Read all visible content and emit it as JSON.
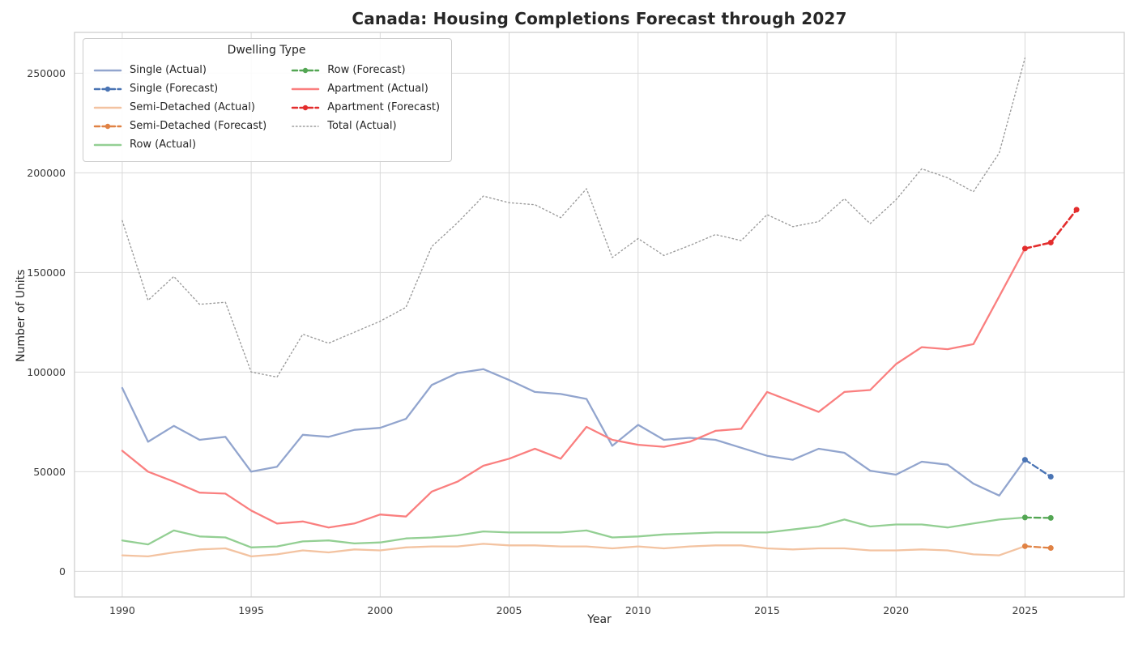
{
  "chart_data": {
    "type": "line",
    "title": "Canada: Housing Completions Forecast through 2027",
    "xlabel": "Year",
    "ylabel": "Number of Units",
    "legend_title": "Dwelling Type",
    "legend_position": "upper left",
    "grid": true,
    "colors": {
      "single_actual": "#92a5ce",
      "single_forecast": "#4a74b4",
      "semi_actual": "#f3c3a1",
      "semi_forecast": "#e08244",
      "row_actual": "#93cf93",
      "row_forecast": "#53a653",
      "apartment_actual": "#fa7f7f",
      "apartment_forecast": "#e32d2d",
      "total": "#9c9c9c"
    },
    "xticks": [
      1990,
      1995,
      2000,
      2005,
      2010,
      2015,
      2020,
      2025
    ],
    "yticks": [
      0,
      50000,
      100000,
      150000,
      200000,
      250000
    ],
    "xlim": [
      1988.15,
      2028.85
    ],
    "ylim": [
      -12880,
      270480
    ],
    "years": [
      1990,
      1991,
      1992,
      1993,
      1994,
      1995,
      1996,
      1997,
      1998,
      1999,
      2000,
      2001,
      2002,
      2003,
      2004,
      2005,
      2006,
      2007,
      2008,
      2009,
      2010,
      2011,
      2012,
      2013,
      2014,
      2015,
      2016,
      2017,
      2018,
      2019,
      2020,
      2021,
      2022,
      2023,
      2024,
      2025
    ],
    "series": [
      {
        "id": "single-actual",
        "name": "Single (Actual)",
        "style": "solid",
        "color": "#92a5ce",
        "width": 2.3,
        "markers": false,
        "x": null,
        "values": [
          92000,
          65000,
          73000,
          66000,
          67500,
          50000,
          52500,
          68500,
          67500,
          71000,
          72000,
          76500,
          93500,
          99500,
          101500,
          96000,
          90000,
          89000,
          86500,
          63000,
          73500,
          66000,
          67000,
          66000,
          62000,
          58000,
          56000,
          61500,
          59500,
          50500,
          48500,
          55000,
          53500,
          44000,
          38000,
          56000
        ]
      },
      {
        "id": "single-forecast",
        "name": "Single (Forecast)",
        "style": "dashed",
        "color": "#4a74b4",
        "width": 2.3,
        "markers": true,
        "x": [
          2025,
          2026
        ],
        "values": [
          56000,
          47500
        ]
      },
      {
        "id": "semi-detached-actual",
        "name": "Semi-Detached (Actual)",
        "style": "solid",
        "color": "#f3c3a1",
        "width": 2.3,
        "markers": false,
        "x": null,
        "values": [
          8000,
          7500,
          9500,
          11000,
          11500,
          7500,
          8500,
          10500,
          9500,
          11000,
          10500,
          12000,
          12500,
          12500,
          13800,
          13000,
          13000,
          12500,
          12500,
          11500,
          12500,
          11500,
          12500,
          13000,
          13000,
          11500,
          11000,
          11500,
          11500,
          10500,
          10500,
          11000,
          10500,
          8500,
          8000,
          12600
        ]
      },
      {
        "id": "semi-detached-forecast",
        "name": "Semi-Detached (Forecast)",
        "style": "dashed",
        "color": "#e08244",
        "width": 2.3,
        "markers": true,
        "x": [
          2025,
          2026
        ],
        "values": [
          12600,
          11700
        ]
      },
      {
        "id": "row-actual",
        "name": "Row (Actual)",
        "style": "solid",
        "color": "#93cf93",
        "width": 2.3,
        "markers": false,
        "x": null,
        "values": [
          15500,
          13500,
          20500,
          17500,
          17000,
          12000,
          12500,
          15000,
          15500,
          14000,
          14500,
          16500,
          17000,
          18000,
          20000,
          19500,
          19500,
          19500,
          20500,
          17000,
          17500,
          18500,
          19000,
          19500,
          19500,
          19500,
          21000,
          22500,
          26000,
          22500,
          23500,
          23500,
          22000,
          24000,
          26000,
          27000
        ]
      },
      {
        "id": "row-forecast",
        "name": "Row (Forecast)",
        "style": "dashed",
        "color": "#53a653",
        "width": 2.3,
        "markers": true,
        "x": [
          2025,
          2026
        ],
        "values": [
          27000,
          26800
        ]
      },
      {
        "id": "apartment-actual",
        "name": "Apartment (Actual)",
        "style": "solid",
        "color": "#fa7f7f",
        "width": 2.3,
        "markers": false,
        "x": null,
        "values": [
          60500,
          50000,
          45000,
          39500,
          39000,
          30500,
          24000,
          25000,
          22000,
          24000,
          28500,
          27500,
          40000,
          45000,
          53000,
          56500,
          61500,
          56500,
          72500,
          66000,
          63500,
          62500,
          65000,
          70500,
          71500,
          90000,
          85000,
          80000,
          90000,
          91000,
          104000,
          112500,
          111500,
          114000,
          138000,
          162000
        ]
      },
      {
        "id": "apartment-forecast",
        "name": "Apartment (Forecast)",
        "style": "dashed",
        "color": "#e32d2d",
        "width": 2.6,
        "markers": true,
        "x": [
          2025,
          2026,
          2027
        ],
        "values": [
          162000,
          165000,
          181500
        ]
      },
      {
        "id": "total-actual",
        "name": "Total (Actual)",
        "style": "dotted",
        "color": "#9c9c9c",
        "width": 1.4,
        "markers": false,
        "x": null,
        "values": [
          176000,
          136000,
          148000,
          134000,
          135000,
          100000,
          97500,
          119000,
          114500,
          120000,
          125500,
          132500,
          163000,
          175000,
          188300,
          185000,
          184000,
          177500,
          192000,
          157500,
          167000,
          158500,
          163500,
          169000,
          166000,
          179000,
          173000,
          175500,
          187000,
          174500,
          186500,
          202000,
          197500,
          190500,
          210000,
          257600
        ]
      }
    ]
  }
}
